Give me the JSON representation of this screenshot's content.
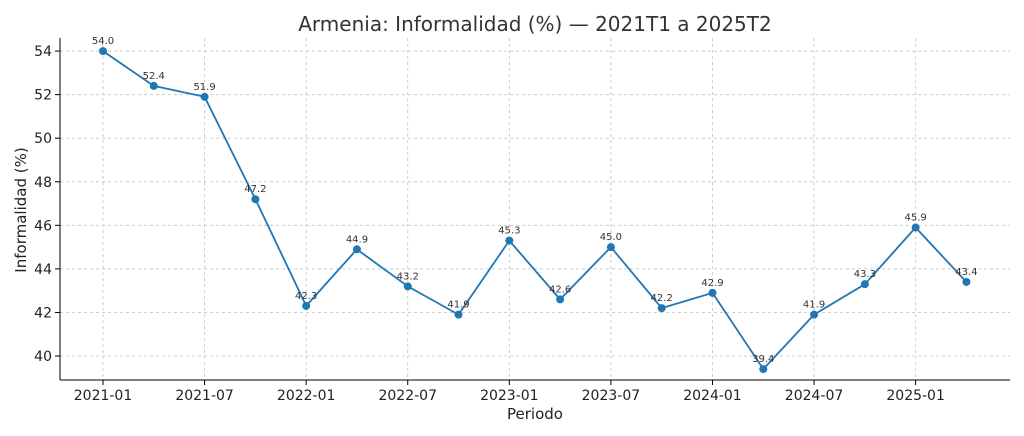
{
  "chart_data": {
    "type": "line",
    "title": "Armenia: Informalidad (%) — 2021T1 a 2025T2",
    "xlabel": "Periodo",
    "ylabel": "Informalidad (%)",
    "x": [
      "2021-01",
      "2021-04",
      "2021-07",
      "2021-10",
      "2022-01",
      "2022-04",
      "2022-07",
      "2022-10",
      "2023-01",
      "2023-04",
      "2023-07",
      "2023-10",
      "2024-01",
      "2024-04",
      "2024-07",
      "2024-10",
      "2025-01",
      "2025-04"
    ],
    "values": [
      54.0,
      52.4,
      51.9,
      47.2,
      42.3,
      44.9,
      43.2,
      41.9,
      45.3,
      42.6,
      45.0,
      42.2,
      42.9,
      39.4,
      41.9,
      43.3,
      45.9,
      43.4
    ],
    "data_labels": [
      "54.0",
      "52.4",
      "51.9",
      "47.2",
      "42.3",
      "44.9",
      "43.2",
      "41.9",
      "45.3",
      "42.6",
      "45.0",
      "42.2",
      "42.9",
      "39.4",
      "41.9",
      "43.3",
      "45.9",
      "43.4"
    ],
    "x_ticks": [
      "2021-01",
      "2021-07",
      "2022-01",
      "2022-07",
      "2023-01",
      "2023-07",
      "2024-01",
      "2024-07",
      "2025-01"
    ],
    "y_ticks": [
      "40",
      "42",
      "44",
      "46",
      "48",
      "50",
      "52",
      "54"
    ],
    "ylim": [
      38.9,
      54.6
    ],
    "grid": true,
    "color": "#1f77b4"
  }
}
